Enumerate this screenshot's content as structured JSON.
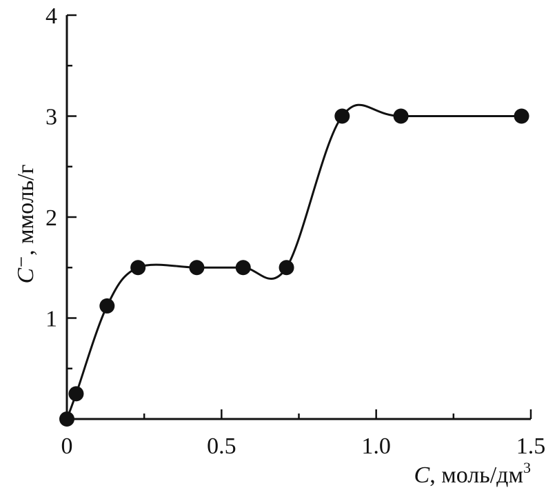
{
  "chart_data": {
    "type": "line",
    "title": "",
    "xlabel": "C, моль/дм",
    "xlabel_sup": "3",
    "ylabel": "C⁻, ммоль/г",
    "xlim": [
      0,
      1.5
    ],
    "ylim": [
      0,
      4
    ],
    "x_ticks": [
      {
        "value": 0,
        "label": "0"
      },
      {
        "value": 0.5,
        "label": "0.5"
      },
      {
        "value": 1.0,
        "label": "1.0"
      },
      {
        "value": 1.5,
        "label": "1.5"
      }
    ],
    "y_ticks": [
      {
        "value": 1,
        "label": "1"
      },
      {
        "value": 2,
        "label": "2"
      },
      {
        "value": 3,
        "label": "3"
      },
      {
        "value": 4,
        "label": "4"
      }
    ],
    "grid": false,
    "series": [
      {
        "marker": "filled-circle",
        "color": "#111111",
        "points": [
          {
            "x": 0.0,
            "y": 0.0
          },
          {
            "x": 0.03,
            "y": 0.25
          },
          {
            "x": 0.13,
            "y": 1.12
          },
          {
            "x": 0.23,
            "y": 1.5
          },
          {
            "x": 0.42,
            "y": 1.5
          },
          {
            "x": 0.57,
            "y": 1.5
          },
          {
            "x": 0.71,
            "y": 1.5
          },
          {
            "x": 0.89,
            "y": 3.0
          },
          {
            "x": 1.08,
            "y": 3.0
          },
          {
            "x": 1.47,
            "y": 3.0
          }
        ]
      }
    ]
  }
}
